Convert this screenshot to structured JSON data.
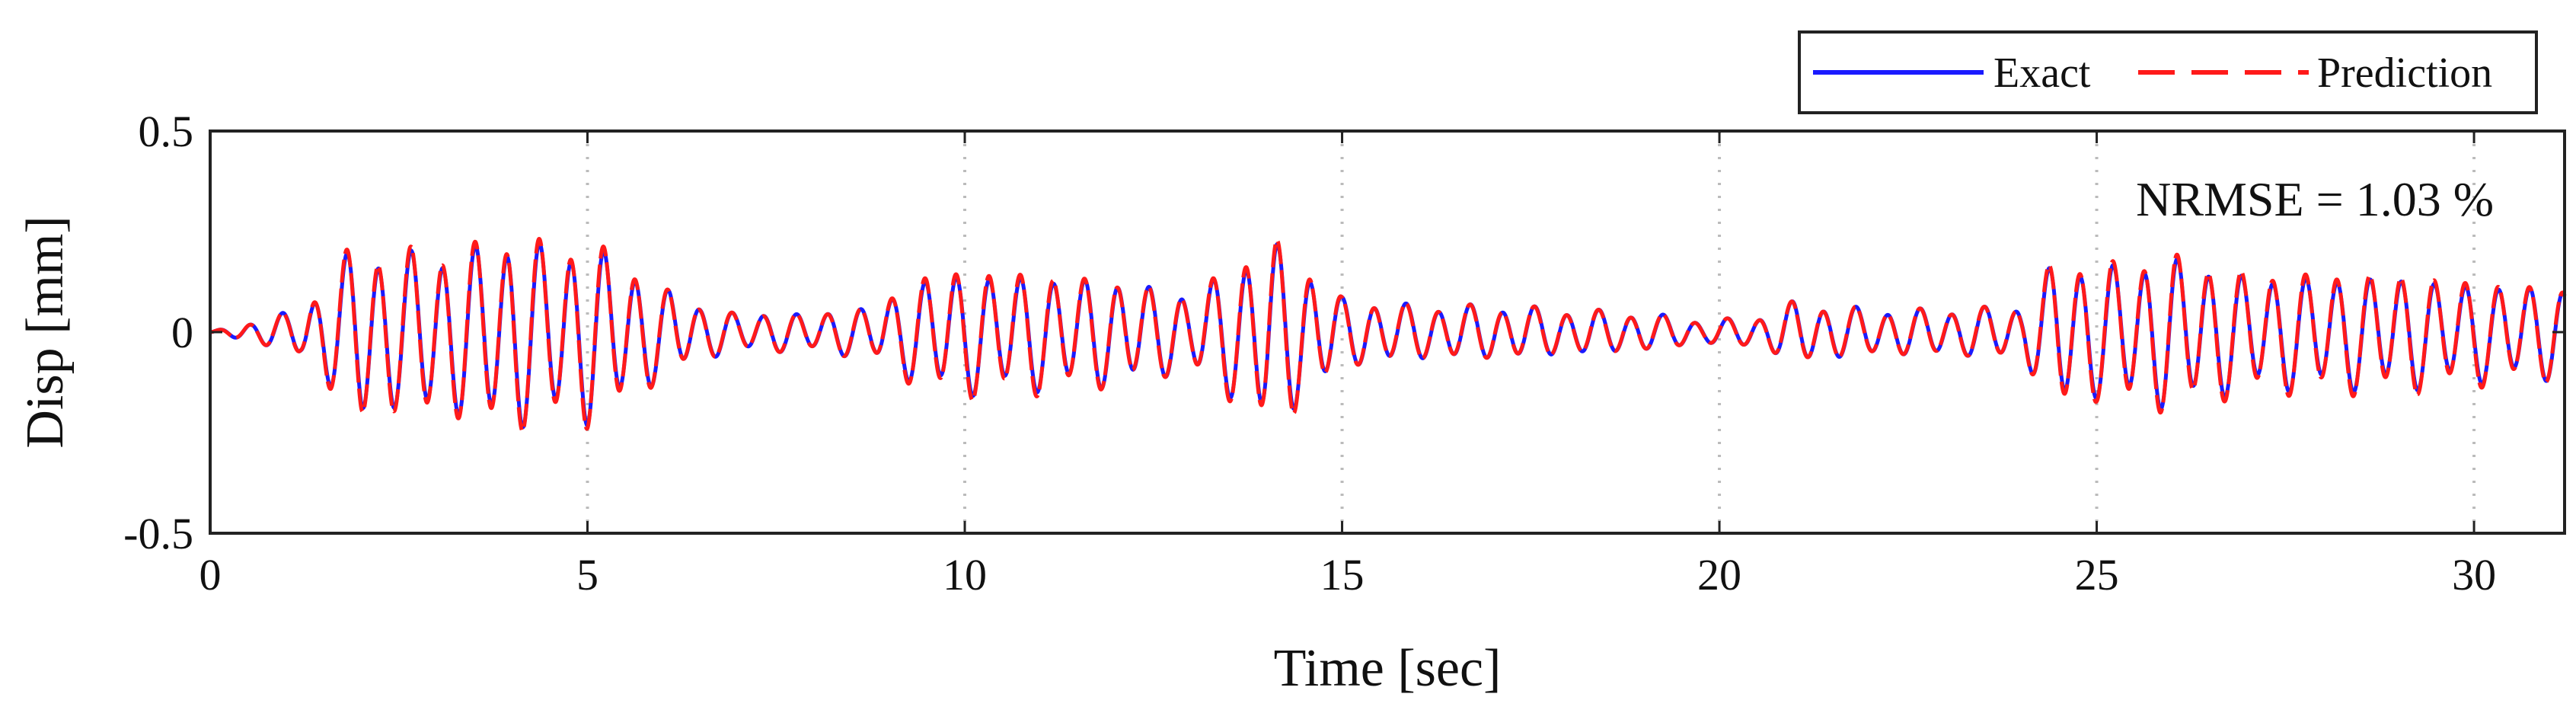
{
  "chart_data": {
    "type": "line",
    "title": "",
    "xlabel": "Time [sec]",
    "ylabel": "Disp [mm]",
    "xlim": [
      0,
      31.2
    ],
    "ylim": [
      -0.5,
      0.5
    ],
    "x_ticks": [
      0,
      5,
      10,
      15,
      20,
      25,
      30
    ],
    "x_tick_labels": [
      "0",
      "5",
      "10",
      "15",
      "20",
      "25",
      "30"
    ],
    "y_ticks": [
      -0.5,
      0,
      0.5
    ],
    "y_tick_labels": [
      "-0.5",
      "0",
      "0.5"
    ],
    "grid": "vertical dotted at x ticks",
    "legend": {
      "placement": "top-right outside",
      "entries": [
        {
          "label": "Exact",
          "color": "#1a1aff",
          "style": "solid"
        },
        {
          "label": "Prediction",
          "color": "#ff1a1a",
          "style": "dashed"
        }
      ]
    },
    "annotation": "NRMSE = 1.03 %",
    "series": [
      {
        "name": "Exact",
        "color": "#1a1aff",
        "style": "solid",
        "signal_description": "oscillatory displacement, ~2.3 Hz",
        "envelope": {
          "t": [
            0,
            0.4,
            0.8,
            1.2,
            1.6,
            2.0,
            2.5,
            3.0,
            3.5,
            4.0,
            4.5,
            5.0,
            5.5,
            6.0,
            6.5,
            7.0,
            8.0,
            8.8,
            9.5,
            10.0,
            11.0,
            12.0,
            13.0,
            13.6,
            14.0,
            14.5,
            15.0,
            16.0,
            17.0,
            18.0,
            19.0,
            19.8,
            20.5,
            21.0,
            22.0,
            23.0,
            24.0,
            24.5,
            25.0,
            26.0,
            27.0,
            28.0,
            29.0,
            30.0,
            31.2
          ],
          "amp": [
            0.0,
            0.02,
            0.04,
            0.06,
            0.15,
            0.24,
            0.2,
            0.22,
            0.22,
            0.26,
            0.22,
            0.24,
            0.18,
            0.12,
            0.07,
            0.05,
            0.05,
            0.07,
            0.15,
            0.16,
            0.15,
            0.14,
            0.1,
            0.18,
            0.25,
            0.18,
            0.09,
            0.07,
            0.07,
            0.06,
            0.05,
            0.03,
            0.04,
            0.08,
            0.06,
            0.06,
            0.07,
            0.2,
            0.17,
            0.2,
            0.15,
            0.15,
            0.15,
            0.13,
            0.12
          ]
        }
      },
      {
        "name": "Prediction",
        "color": "#ff1a1a",
        "style": "dashed",
        "signal_description": "closely tracks Exact",
        "envelope": {
          "t": [
            0,
            0.4,
            0.8,
            1.2,
            1.6,
            2.0,
            2.5,
            3.0,
            3.5,
            4.0,
            4.5,
            5.0,
            5.5,
            6.0,
            6.5,
            7.0,
            8.0,
            8.8,
            9.5,
            10.0,
            11.0,
            12.0,
            13.0,
            13.6,
            14.0,
            14.5,
            15.0,
            16.0,
            17.0,
            18.0,
            19.0,
            19.8,
            20.5,
            21.0,
            22.0,
            23.0,
            24.0,
            24.5,
            25.0,
            26.0,
            27.0,
            28.0,
            29.0,
            30.0,
            31.2
          ],
          "amp": [
            0.0,
            0.02,
            0.04,
            0.06,
            0.16,
            0.25,
            0.21,
            0.23,
            0.23,
            0.27,
            0.23,
            0.25,
            0.19,
            0.12,
            0.07,
            0.05,
            0.05,
            0.07,
            0.16,
            0.17,
            0.16,
            0.14,
            0.1,
            0.19,
            0.26,
            0.19,
            0.09,
            0.07,
            0.07,
            0.06,
            0.05,
            0.03,
            0.04,
            0.08,
            0.06,
            0.06,
            0.07,
            0.21,
            0.18,
            0.21,
            0.16,
            0.16,
            0.16,
            0.14,
            0.12
          ]
        }
      }
    ]
  }
}
